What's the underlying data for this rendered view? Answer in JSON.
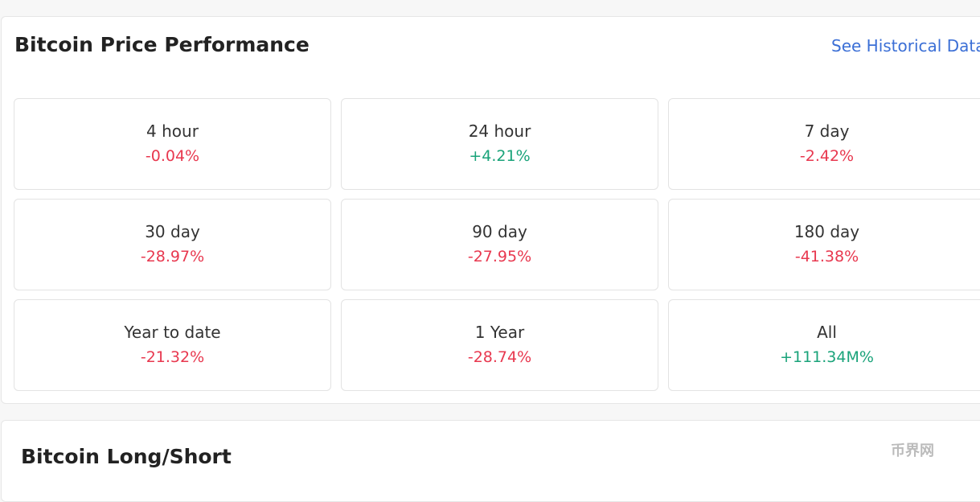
{
  "header": {
    "title": "Bitcoin Price Performance",
    "link": "See Historical Data"
  },
  "cells": [
    {
      "label": "4 hour",
      "value": "-0.04%",
      "trend": "down"
    },
    {
      "label": "24 hour",
      "value": "+4.21%",
      "trend": "up"
    },
    {
      "label": "7 day",
      "value": "-2.42%",
      "trend": "down"
    },
    {
      "label": "30 day",
      "value": "-28.97%",
      "trend": "down"
    },
    {
      "label": "90 day",
      "value": "-27.95%",
      "trend": "down"
    },
    {
      "label": "180 day",
      "value": "-41.38%",
      "trend": "down"
    },
    {
      "label": "Year to date",
      "value": "-21.32%",
      "trend": "down"
    },
    {
      "label": "1 Year",
      "value": "-28.74%",
      "trend": "down"
    },
    {
      "label": "All",
      "value": "+111.34M%",
      "trend": "up"
    }
  ],
  "section2": {
    "title": "Bitcoin Long/Short"
  },
  "watermark": "币界网"
}
